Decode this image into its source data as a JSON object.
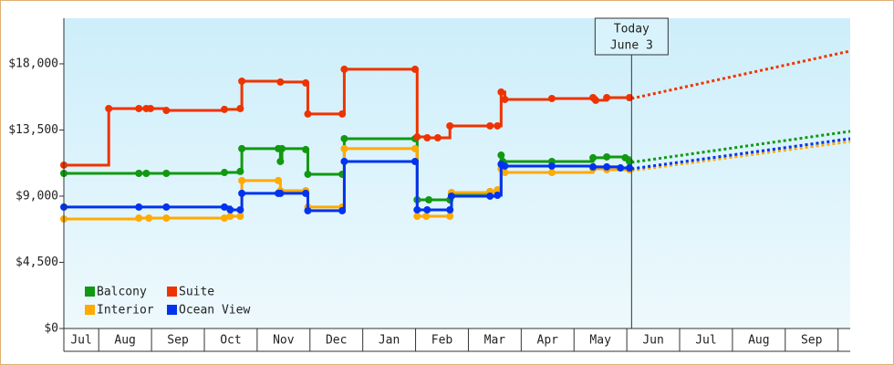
{
  "chart_data": {
    "type": "step-line",
    "xlim": [
      0.34,
      15.23
    ],
    "xticks": [
      {
        "value": 0.67,
        "label": "Jul"
      },
      {
        "value": 1.5,
        "label": "Aug"
      },
      {
        "value": 2.5,
        "label": "Sep"
      },
      {
        "value": 3.5,
        "label": "Oct"
      },
      {
        "value": 4.5,
        "label": "Nov"
      },
      {
        "value": 5.5,
        "label": "Dec"
      },
      {
        "value": 6.5,
        "label": "Jan"
      },
      {
        "value": 7.5,
        "label": "Feb"
      },
      {
        "value": 8.5,
        "label": "Mar"
      },
      {
        "value": 9.5,
        "label": "Apr"
      },
      {
        "value": 10.5,
        "label": "May"
      },
      {
        "value": 11.5,
        "label": "Jun"
      },
      {
        "value": 12.5,
        "label": "Jul"
      },
      {
        "value": 13.5,
        "label": "Aug"
      },
      {
        "value": 14.5,
        "label": "Sep"
      }
    ],
    "ylim": [
      0,
      21100
    ],
    "yticks": [
      {
        "value": 0,
        "label": "$0"
      },
      {
        "value": 4500,
        "label": "$4,500"
      },
      {
        "value": 9000,
        "label": "$9,000"
      },
      {
        "value": 13500,
        "label": "$13,500"
      },
      {
        "value": 18000,
        "label": "$18,000"
      }
    ],
    "legend": "lower-left",
    "annotation": {
      "lines": [
        "Today",
        "June 3"
      ],
      "x": 11.09
    },
    "projected_x": [
      11.09,
      15.23
    ],
    "series": [
      {
        "name": "Balcony",
        "color": "#119911",
        "x": [
          0.34,
          1.76,
          1.9,
          2.28,
          3.38,
          3.68,
          3.71,
          4.4,
          4.44,
          4.47,
          4.92,
          4.96,
          5.61,
          5.65,
          6.99,
          7.03,
          7.25,
          7.65,
          7.68,
          8.41,
          8.55,
          8.62,
          8.65,
          9.58,
          10.36,
          10.62,
          10.97,
          11.05
        ],
        "values": [
          10550,
          10550,
          10550,
          10550,
          10610,
          10680,
          12230,
          12230,
          11360,
          12230,
          12170,
          10490,
          10490,
          12910,
          12910,
          8750,
          8750,
          8750,
          9190,
          9310,
          9310,
          11790,
          11360,
          11360,
          11610,
          11670,
          11610,
          11360
        ],
        "projected_values": [
          11300,
          13410
        ]
      },
      {
        "name": "Suite",
        "color": "#ee3300",
        "x": [
          0.34,
          1.19,
          1.76,
          1.9,
          1.98,
          2.28,
          3.38,
          3.68,
          3.71,
          4.44,
          4.92,
          4.96,
          5.61,
          5.65,
          6.99,
          7.03,
          7.22,
          7.42,
          7.65,
          8.41,
          8.55,
          8.62,
          8.69,
          9.58,
          10.36,
          10.41,
          10.62,
          11.05
        ],
        "values": [
          11110,
          14960,
          14960,
          14960,
          14960,
          14830,
          14900,
          14960,
          16820,
          16760,
          16700,
          14590,
          14590,
          17630,
          17630,
          13030,
          12970,
          12970,
          13780,
          13780,
          13780,
          16080,
          15580,
          15640,
          15700,
          15520,
          15700,
          15700
        ],
        "projected_values": [
          15640,
          18870
        ]
      },
      {
        "name": "Interior",
        "color": "#ffaa00",
        "x": [
          0.34,
          1.76,
          1.95,
          2.28,
          3.38,
          3.49,
          3.68,
          3.71,
          4.4,
          4.44,
          4.92,
          4.96,
          5.61,
          5.65,
          6.99,
          7.03,
          7.2,
          7.65,
          7.68,
          8.41,
          8.55,
          8.62,
          8.69,
          9.58,
          10.36,
          10.62,
          11.05
        ],
        "values": [
          7450,
          7510,
          7510,
          7510,
          7510,
          7630,
          7630,
          10060,
          10060,
          9370,
          9370,
          8260,
          8260,
          12230,
          12230,
          7630,
          7630,
          7630,
          9250,
          9310,
          9430,
          10860,
          10610,
          10610,
          10860,
          10800,
          10800
        ],
        "projected_values": [
          10740,
          12720
        ]
      },
      {
        "name": "Ocean View",
        "color": "#0033ee",
        "x": [
          0.34,
          1.76,
          2.28,
          3.38,
          3.49,
          3.68,
          3.71,
          4.4,
          4.44,
          4.92,
          4.96,
          5.61,
          5.65,
          6.99,
          7.03,
          7.22,
          7.65,
          7.68,
          8.41,
          8.55,
          8.62,
          8.69,
          9.58,
          10.36,
          10.62,
          10.88,
          11.05
        ],
        "values": [
          8260,
          8260,
          8260,
          8260,
          8070,
          8070,
          9190,
          9190,
          9190,
          9190,
          8010,
          8010,
          11360,
          11360,
          8070,
          8070,
          8070,
          9000,
          9000,
          9060,
          11170,
          11050,
          11050,
          10990,
          10990,
          10920,
          10920
        ],
        "projected_values": [
          10860,
          12910
        ]
      }
    ]
  }
}
